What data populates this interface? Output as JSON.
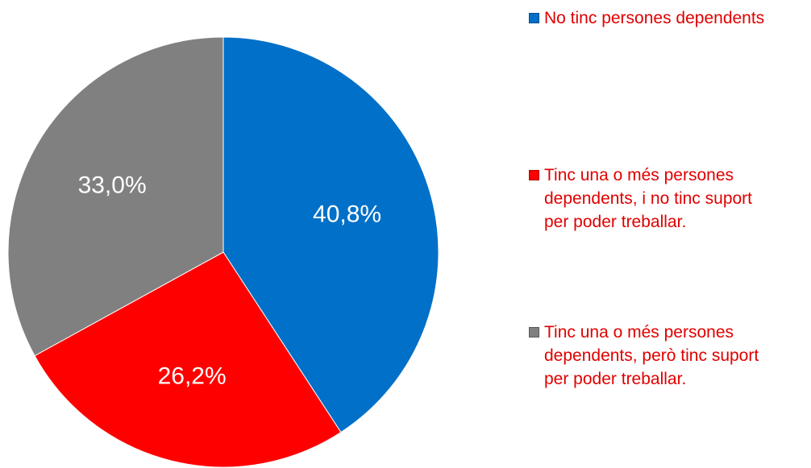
{
  "chart_data": {
    "type": "pie",
    "categories": [
      "No tinc persones dependents",
      "Tinc una o més persones dependents, i no tinc suport per poder treballar.",
      "Tinc una o més persones dependents, però tinc suport per poder treballar."
    ],
    "values": [
      40.8,
      26.2,
      33.0
    ],
    "value_labels": [
      "40,8%",
      "26,2%",
      "33,0%"
    ],
    "colors": [
      "#0070c8",
      "#ff0000",
      "#808080"
    ],
    "legend": "right",
    "legend_text_color": "#e00000"
  }
}
